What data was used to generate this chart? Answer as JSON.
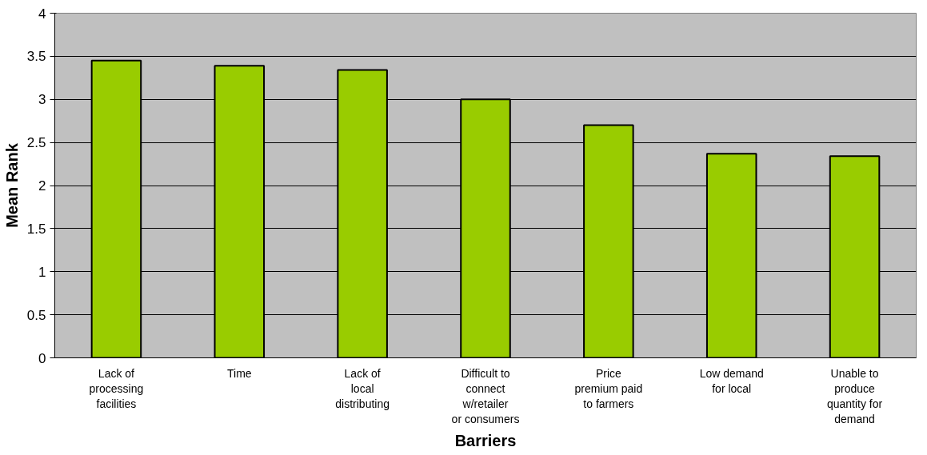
{
  "chart_data": {
    "type": "bar",
    "xlabel": "Barriers",
    "ylabel": "Mean Rank",
    "categories": [
      "Lack of processing facilities",
      "Time",
      "Lack of local distributing",
      "Difficult to connect w/retailer or consumers",
      "Price premium paid to farmers",
      "Low demand for local",
      "Unable to produce quantity for demand"
    ],
    "values": [
      3.45,
      3.39,
      3.34,
      3.0,
      2.7,
      2.37,
      2.34
    ],
    "color": "#99cc00",
    "ylim": [
      0,
      4
    ],
    "yticks": [
      0,
      0.5,
      1,
      1.5,
      2,
      2.5,
      3,
      3.5,
      4
    ],
    "grid": "y"
  }
}
